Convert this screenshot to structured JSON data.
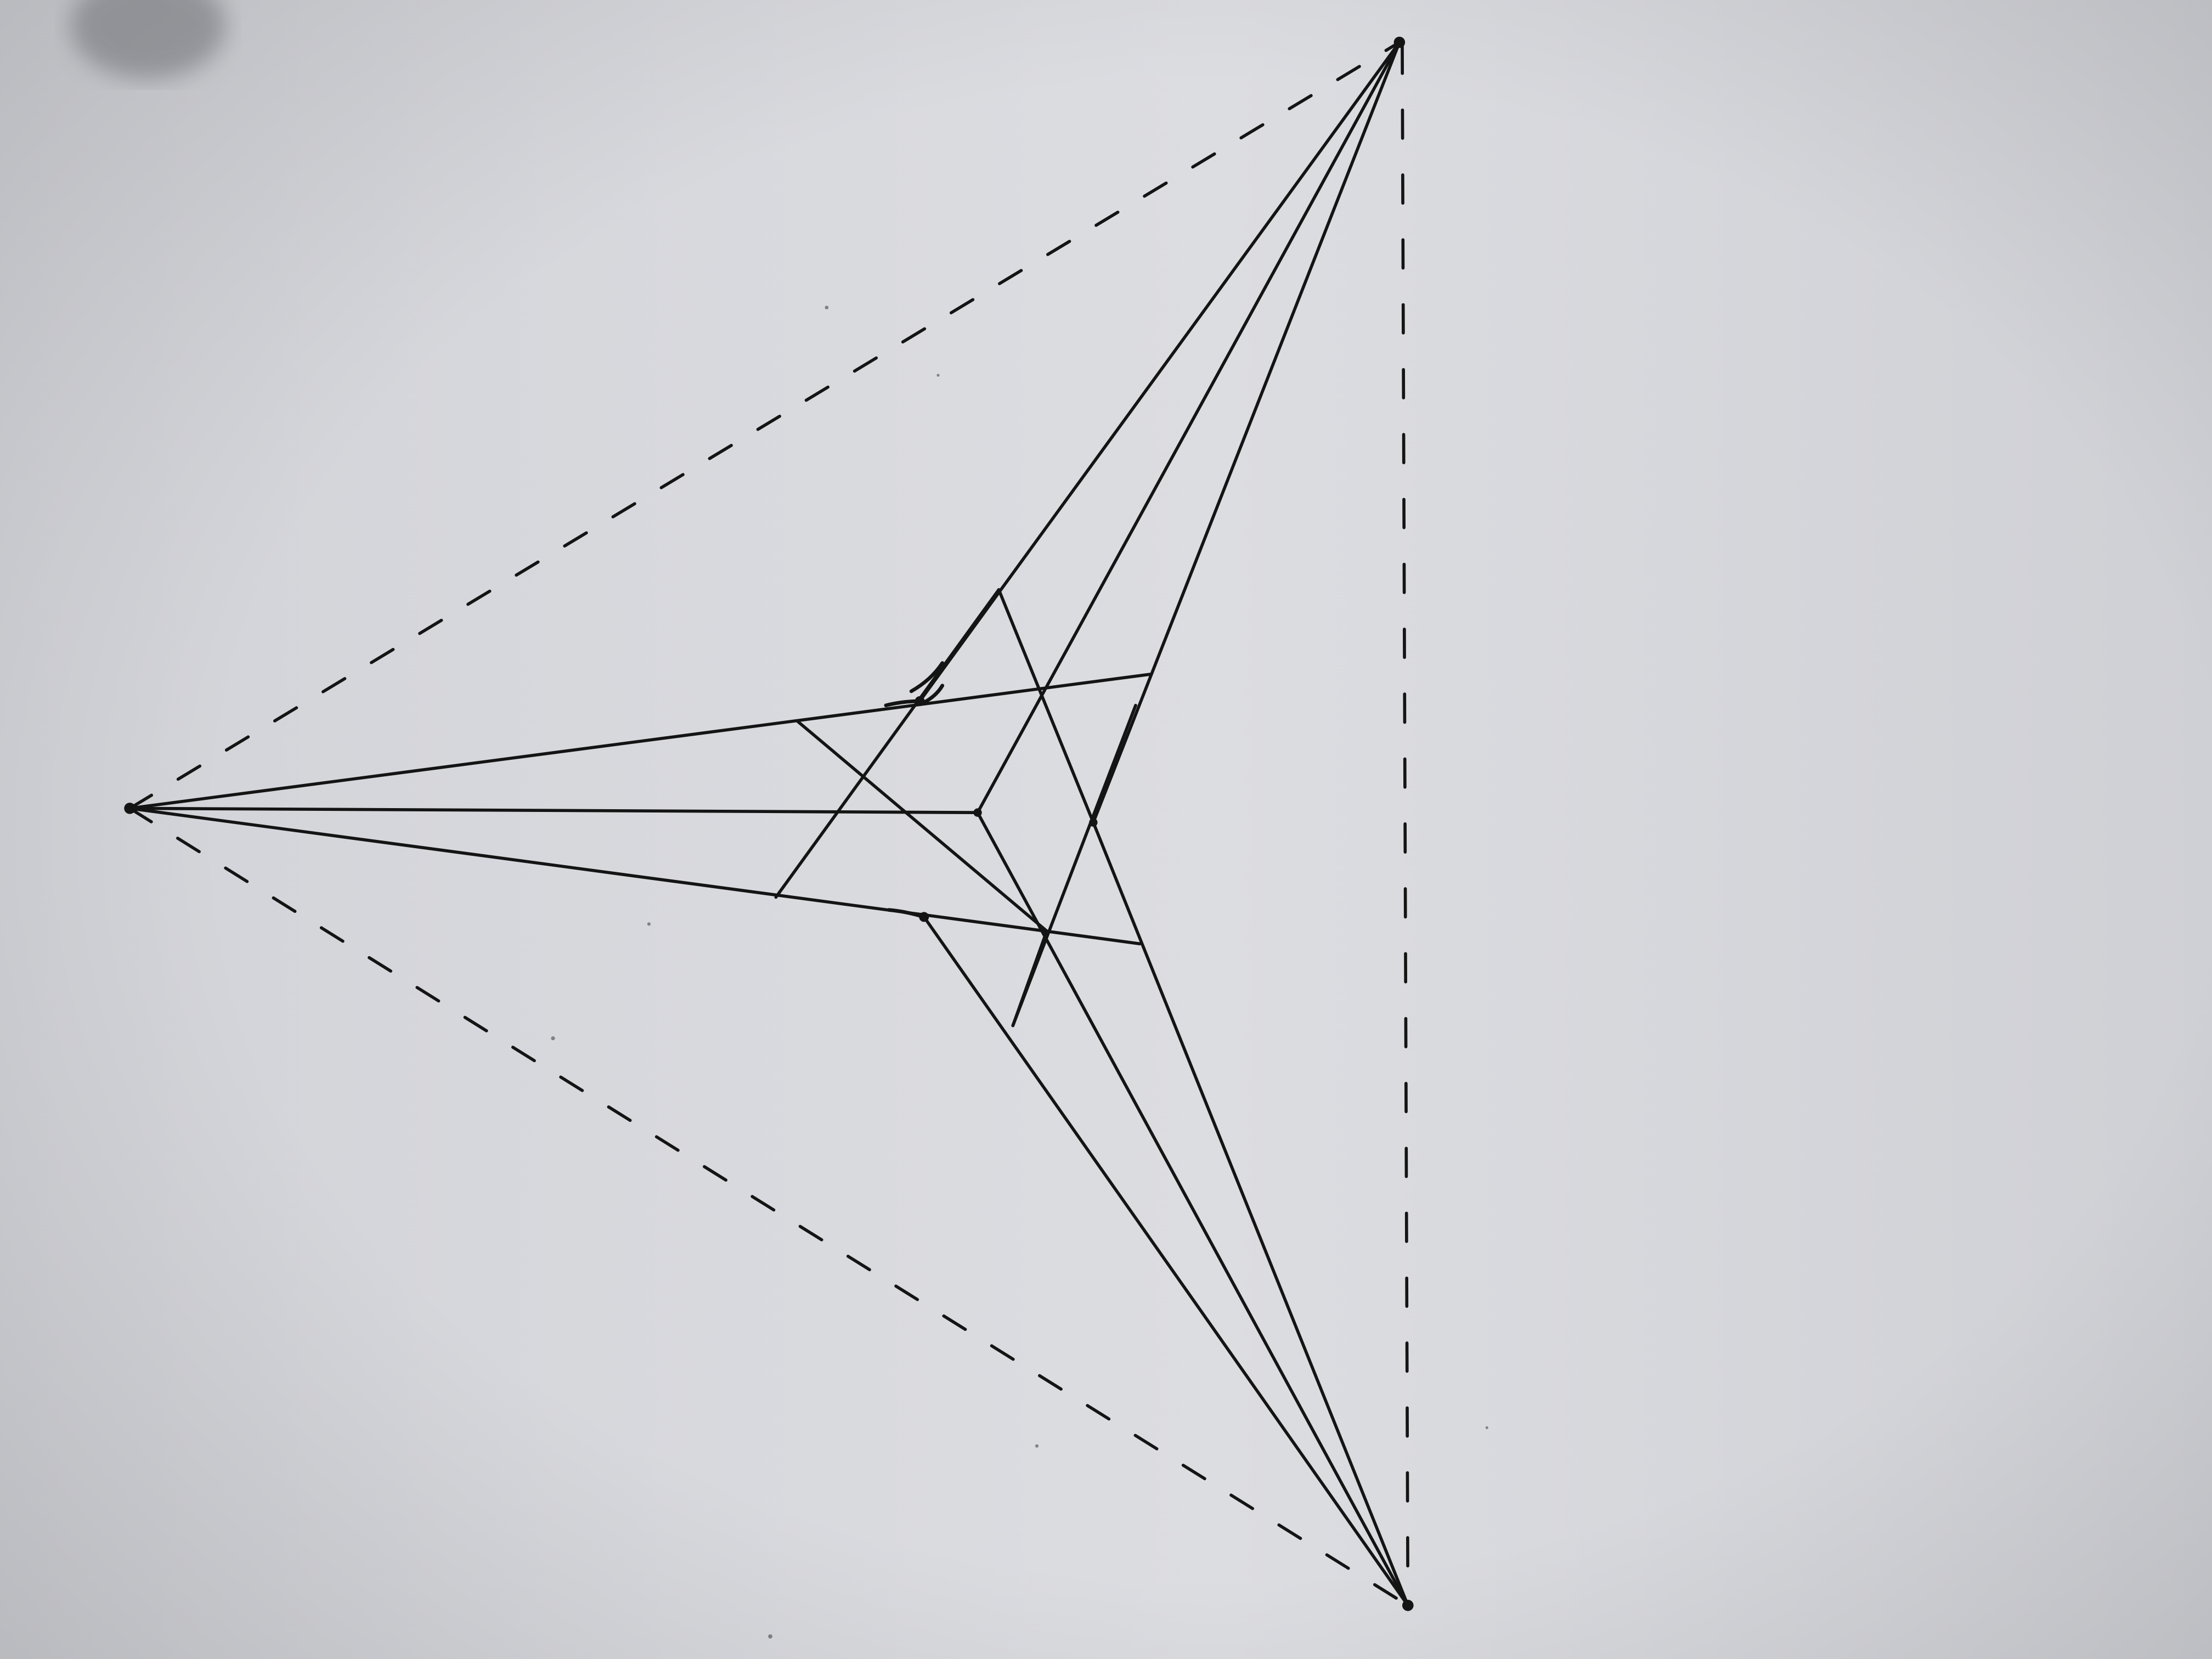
{
  "diagram": {
    "kind": "three-point perspective construction sketch",
    "paper_color": "#d6d7db",
    "ink_color": "#141414",
    "dashed_lines": [
      "horizon-upper",
      "horizon-lower",
      "horizon-vertical"
    ],
    "vanishing_points": [
      "left",
      "top-right",
      "bottom-right"
    ],
    "cube": {
      "visible_edges": 9,
      "hidden_edges": 3
    }
  }
}
